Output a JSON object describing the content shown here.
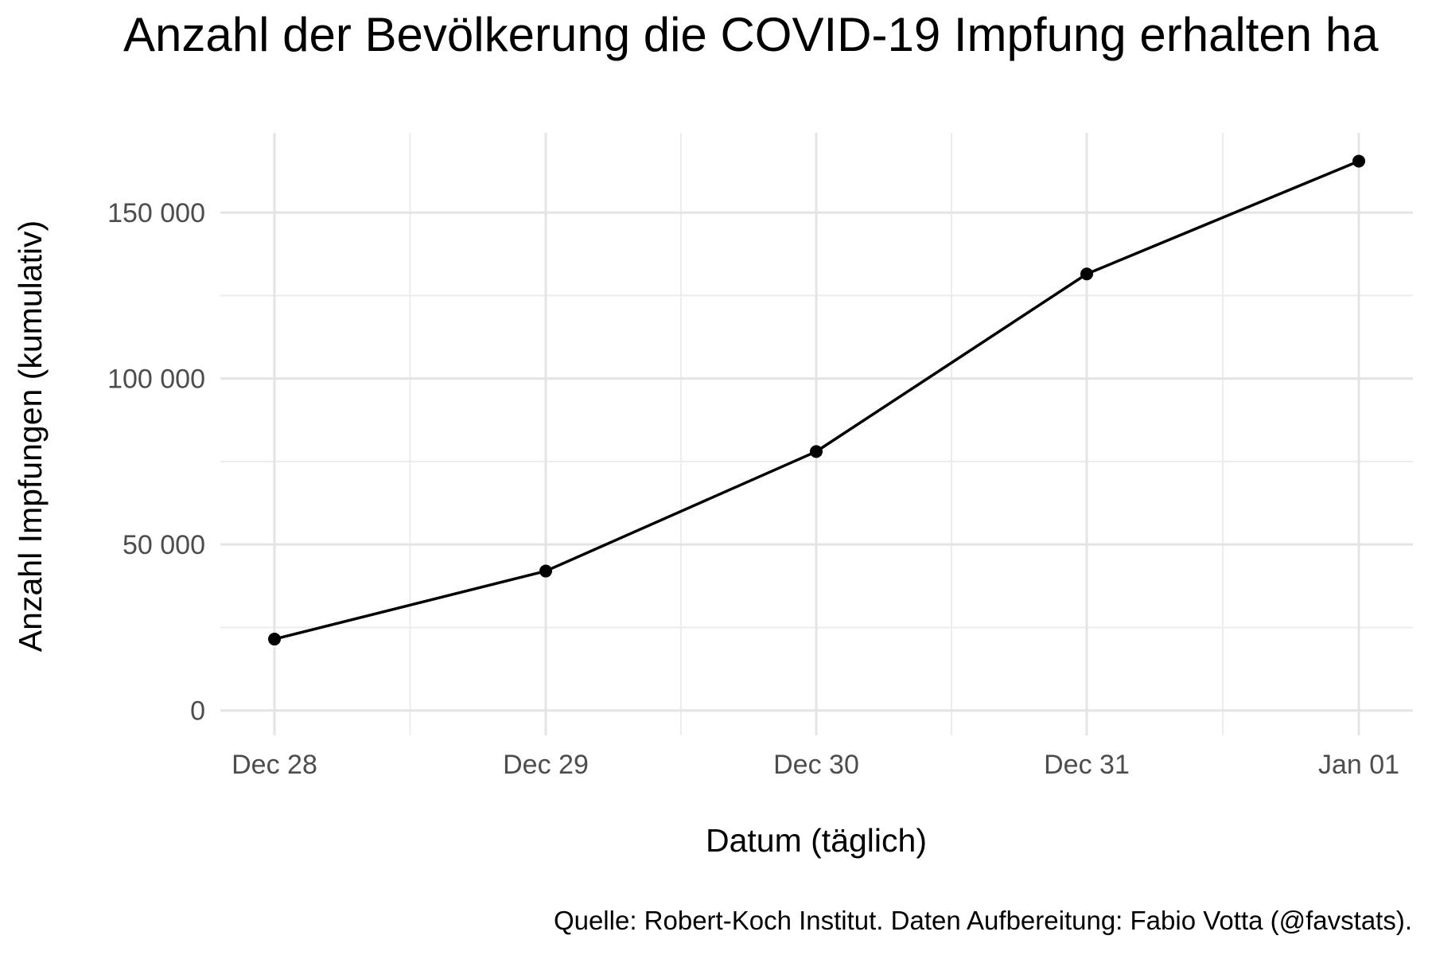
{
  "chart_data": {
    "type": "line",
    "title": "Anzahl der Bevölkerung die COVID-19 Impfung erhalten ha",
    "xlabel": "Datum (täglich)",
    "ylabel": "Anzahl Impfungen (kumulativ)",
    "caption": "Quelle: Robert-Koch Institut. Daten Aufbereitung: Fabio Votta (@favstats).",
    "x_ticks": [
      "Dec 28",
      "Dec 29",
      "Dec 30",
      "Dec 31",
      "Jan 01"
    ],
    "y_ticks": [
      {
        "value": 0,
        "label": "0"
      },
      {
        "value": 50000,
        "label": "50 000"
      },
      {
        "value": 100000,
        "label": "100 000"
      },
      {
        "value": 150000,
        "label": "150 000"
      }
    ],
    "ylim": [
      -7500,
      174000
    ],
    "grid": true,
    "legend": "none",
    "series": [
      {
        "x": [
          "2020-12-28",
          "2020-12-29",
          "2020-12-30",
          "2020-12-31",
          "2021-01-01"
        ],
        "values": [
          21500,
          42000,
          78000,
          131500,
          165500
        ],
        "color": "#000000"
      }
    ]
  }
}
